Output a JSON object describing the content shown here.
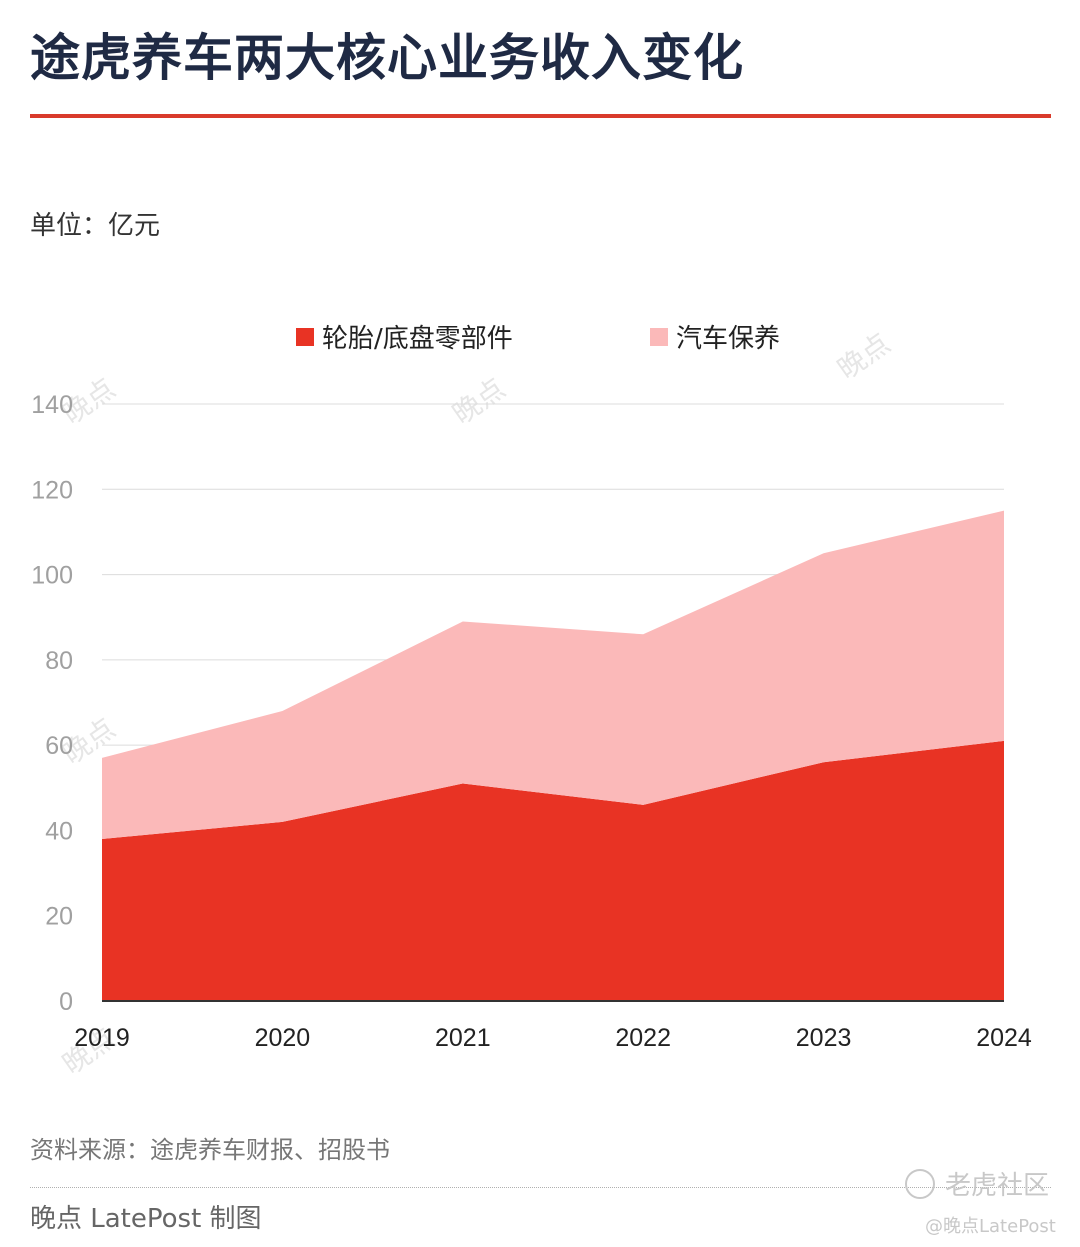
{
  "header": {
    "title": "途虎养车两大核心业务收入变化",
    "unit": "单位：亿元"
  },
  "chart_data": {
    "type": "area",
    "stacked": true,
    "x": [
      "2019",
      "2020",
      "2021",
      "2022",
      "2023",
      "2024"
    ],
    "series": [
      {
        "name": "轮胎/底盘零部件",
        "values": [
          38,
          42,
          51,
          46,
          56,
          61
        ],
        "color": "#e83324"
      },
      {
        "name": "汽车保养",
        "values": [
          19,
          26,
          38,
          40,
          49,
          54
        ],
        "color": "#fbb9b9"
      }
    ],
    "ylim": [
      0,
      140
    ],
    "yticks": [
      0,
      20,
      40,
      60,
      80,
      100,
      120,
      140
    ],
    "grid": true,
    "legend_position": "top-center"
  },
  "footer": {
    "source": "资料来源：途虎养车财报、招股书",
    "credit": "晚点 LatePost 制图"
  },
  "watermark": {
    "brand_text": "晚点",
    "community": "老虎社区",
    "handle": "@晚点LatePost"
  }
}
